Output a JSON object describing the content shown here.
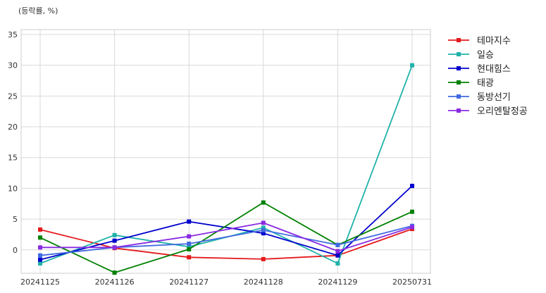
{
  "chart_data": {
    "type": "line",
    "unit_label": "(등락률, %)",
    "title": "",
    "xlabel": "",
    "ylabel": "",
    "categories": [
      "20241125",
      "20241126",
      "20241127",
      "20241128",
      "20241129",
      "20250731"
    ],
    "ylim": [
      -3.8,
      35.8
    ],
    "yticks": [
      0,
      5,
      10,
      15,
      20,
      25,
      30,
      35
    ],
    "grid": true,
    "legend_position": "right-outside-top",
    "series": [
      {
        "name": "테마지수",
        "color": "#e41a1c",
        "values": [
          3.3,
          0.3,
          -1.2,
          -1.5,
          -0.9,
          3.4
        ]
      },
      {
        "name": "일승",
        "color": "#20b2aa",
        "values": [
          -2.2,
          2.4,
          0.5,
          3.6,
          -2.2,
          30.0
        ]
      },
      {
        "name": "현대힘스",
        "color": "#0000cd",
        "values": [
          -1.6,
          1.5,
          4.6,
          2.7,
          -0.9,
          10.4
        ]
      },
      {
        "name": "태광",
        "color": "#008000",
        "values": [
          2.0,
          -3.7,
          0.1,
          7.7,
          0.8,
          6.2
        ]
      },
      {
        "name": "동방선기",
        "color": "#4169e1",
        "values": [
          -0.9,
          0.4,
          1.0,
          3.2,
          0.8,
          3.9
        ]
      },
      {
        "name": "오리엔탈정공",
        "color": "#8a2be2",
        "values": [
          0.4,
          0.4,
          2.2,
          4.4,
          -0.2,
          3.7
        ]
      }
    ]
  }
}
